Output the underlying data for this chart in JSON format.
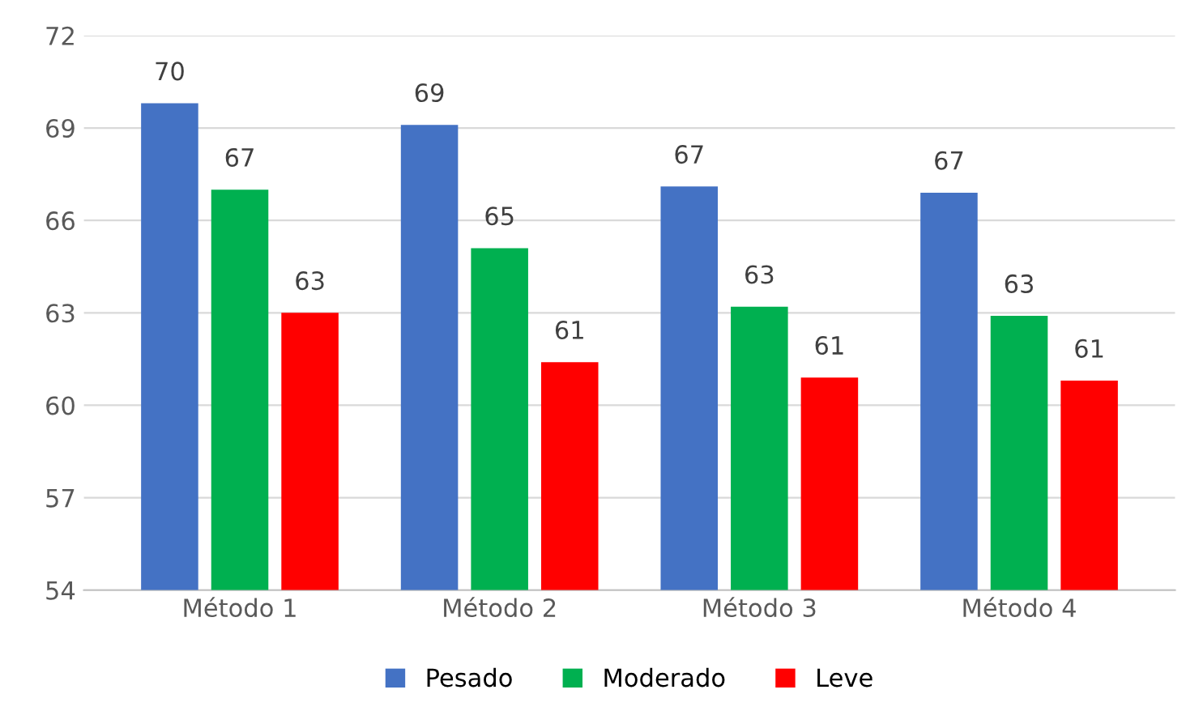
{
  "chart_data": {
    "type": "bar",
    "categories": [
      "Método 1",
      "Método 2",
      "Método 3",
      "Método 4"
    ],
    "series": [
      {
        "name": "Pesado",
        "color": "#4472c4",
        "values": [
          69.8,
          69.1,
          67.1,
          66.9
        ],
        "value_labels": [
          "70",
          "69",
          "67",
          "67"
        ]
      },
      {
        "name": "Moderado",
        "color": "#00b050",
        "values": [
          67.0,
          65.1,
          63.2,
          62.9
        ],
        "value_labels": [
          "67",
          "65",
          "63",
          "63"
        ]
      },
      {
        "name": "Leve",
        "color": "#ff0000",
        "values": [
          63.0,
          61.4,
          60.9,
          60.8
        ],
        "value_labels": [
          "63",
          "61",
          "61",
          "61"
        ]
      }
    ],
    "ylim": [
      54,
      72
    ],
    "yticks": [
      54,
      57,
      60,
      63,
      66,
      69,
      72
    ],
    "grid": "y",
    "legend": "bottom"
  }
}
